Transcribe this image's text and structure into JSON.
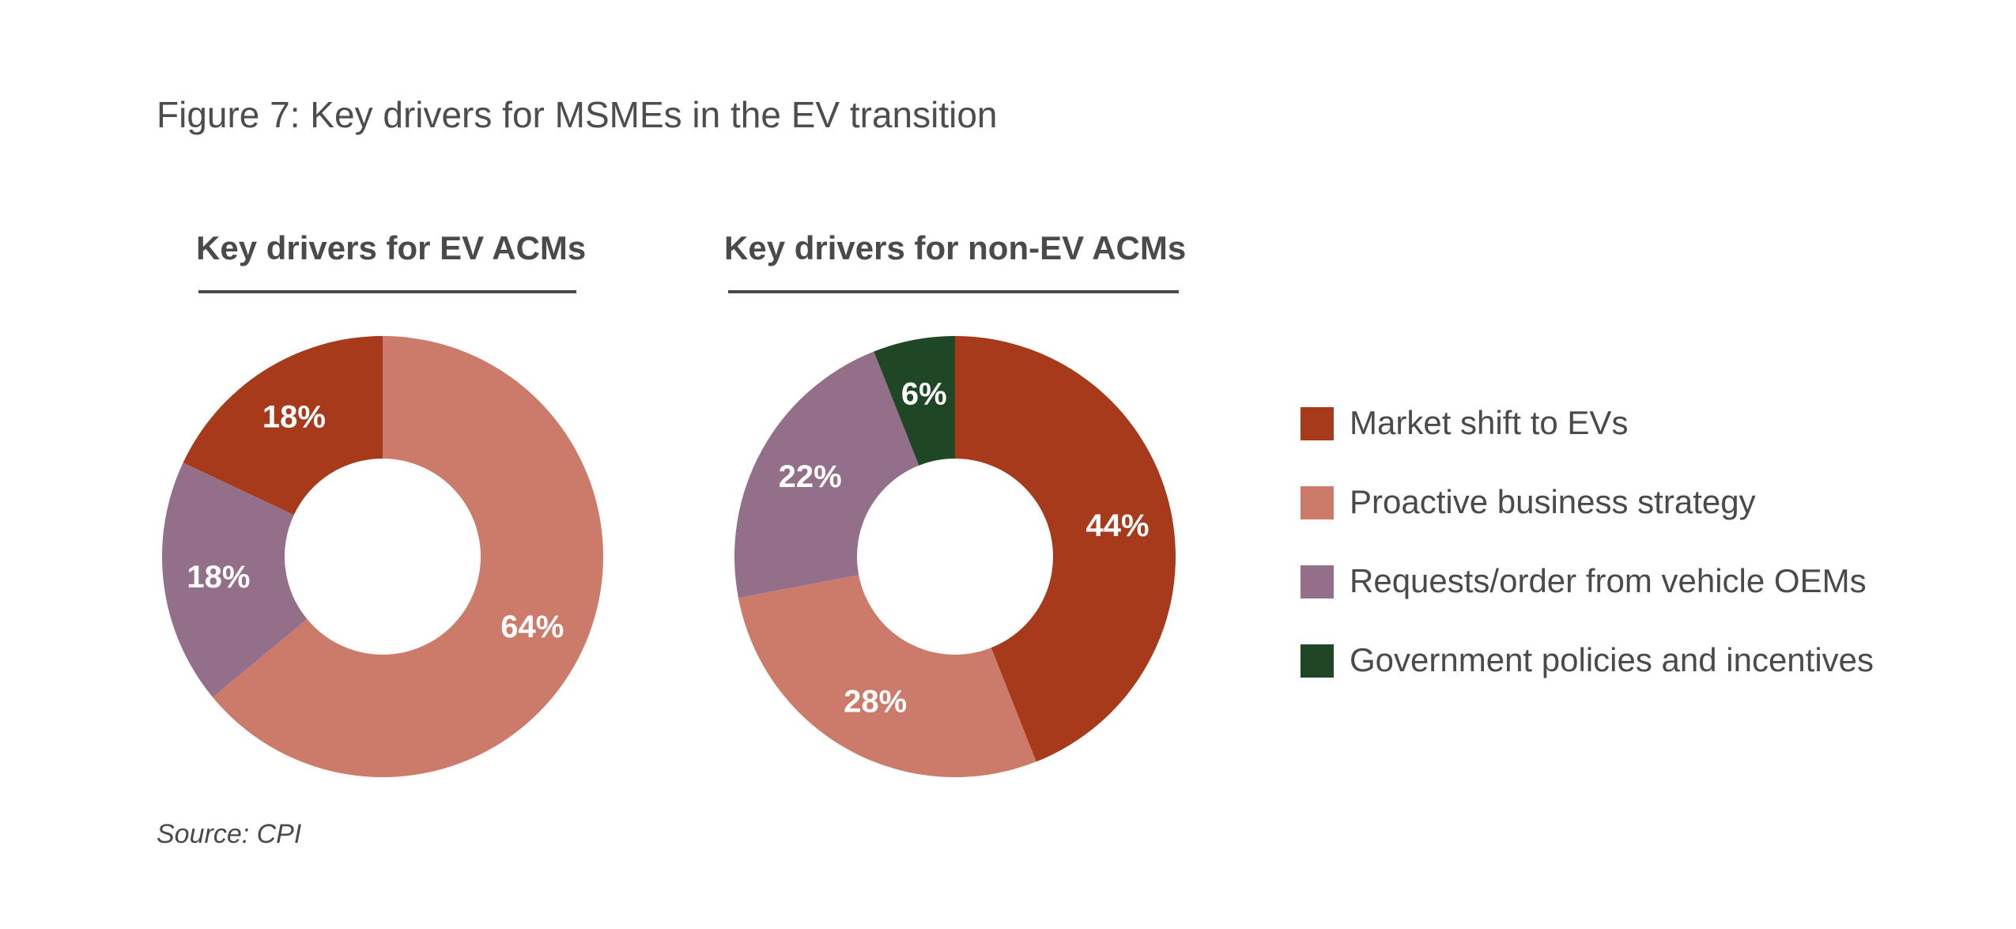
{
  "figure_title": "Figure 7: Key drivers for MSMEs in the EV transition",
  "source": "Source: CPI",
  "colors": {
    "market_shift": "#a63a1b",
    "proactive": "#cc7b6a",
    "requests": "#946f8a",
    "government": "#1f4726"
  },
  "legend": [
    {
      "label": "Market shift to EVs",
      "color": "#a63a1b"
    },
    {
      "label": "Proactive business strategy",
      "color": "#cc7b6a"
    },
    {
      "label": "Requests/order from vehicle OEMs",
      "color": "#946f8a"
    },
    {
      "label": "Government policies and incentives",
      "color": "#1f4726"
    }
  ],
  "chart_data": [
    {
      "type": "pie",
      "donut": true,
      "title": "Key drivers for EV ACMs",
      "slices": [
        {
          "label": "Proactive business strategy",
          "value": 64,
          "display": "64%",
          "color": "#cc7b6a"
        },
        {
          "label": "Requests/order from vehicle OEMs",
          "value": 18,
          "display": "18%",
          "color": "#946f8a"
        },
        {
          "label": "Market shift to EVs",
          "value": 18,
          "display": "18%",
          "color": "#a63a1b"
        }
      ]
    },
    {
      "type": "pie",
      "donut": true,
      "title": "Key drivers for non-EV ACMs",
      "slices": [
        {
          "label": "Market shift to EVs",
          "value": 44,
          "display": "44%",
          "color": "#a63a1b"
        },
        {
          "label": "Proactive business strategy",
          "value": 28,
          "display": "28%",
          "color": "#cc7b6a"
        },
        {
          "label": "Requests/order from vehicle OEMs",
          "value": 22,
          "display": "22%",
          "color": "#946f8a"
        },
        {
          "label": "Government policies and incentives",
          "value": 6,
          "display": "6%",
          "color": "#1f4726"
        }
      ]
    }
  ]
}
